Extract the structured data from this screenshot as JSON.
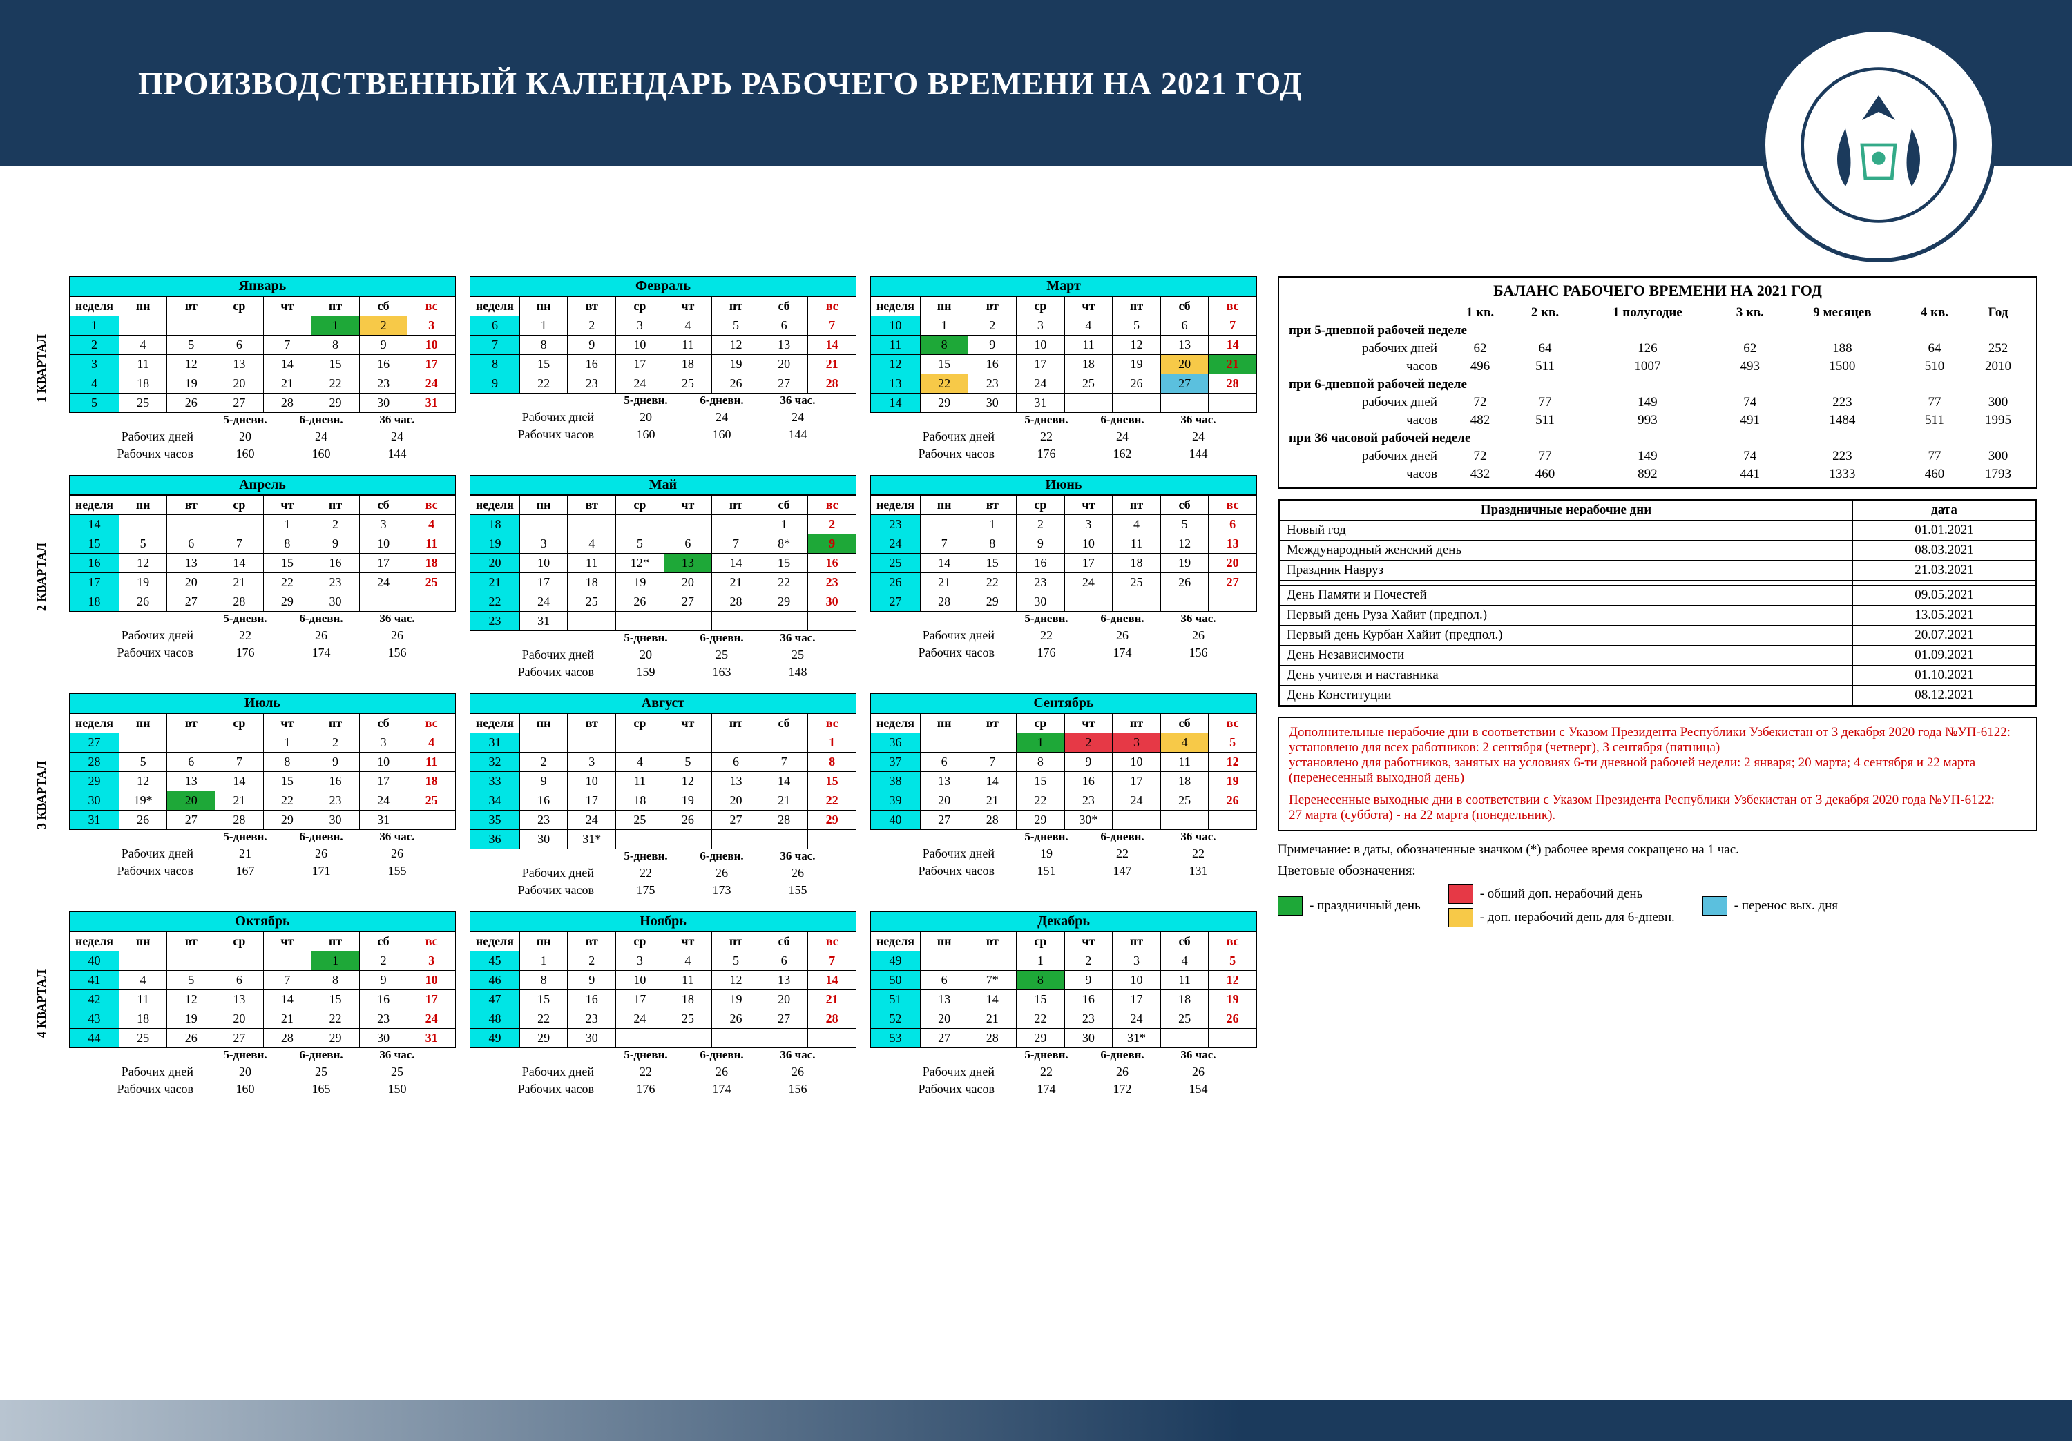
{
  "colors": {
    "brand_dark": "#1b3a5c",
    "cyan_header": "#00e5e5",
    "holiday_green": "#1ea838",
    "holiday_red": "#e63946",
    "holiday_yellow": "#f7c948",
    "holiday_cyan": "#5bc0de",
    "sunday_text": "#c00000"
  },
  "title": "ПРОИЗВОДСТВЕННЫЙ КАЛЕНДАРЬ РАБОЧЕГО ВРЕМЕНИ  НА 2021 ГОД",
  "day_headers": [
    "неделя",
    "пн",
    "вт",
    "ср",
    "чт",
    "пт",
    "сб",
    "вс"
  ],
  "quarter_labels": [
    "1 КВАРТАЛ",
    "2 КВАРТАЛ",
    "3 КВАРТАЛ",
    "4 КВАРТАЛ"
  ],
  "summary_labels": {
    "col5": "5-дневн.",
    "col6": "6-дневн.",
    "col36": "36 час.",
    "days": "Рабочих дней",
    "hours": "Рабочих часов"
  },
  "months": [
    {
      "name": "Январь",
      "weeks": [
        1,
        2,
        3,
        4,
        5
      ],
      "start": 5,
      "days": 31,
      "specials": {
        "1": "green",
        "2": "yellow",
        "3": "sun",
        "10": "sun",
        "14": "sun",
        "17": "sun",
        "23": "sun",
        "24": "sun",
        "31": "sun"
      },
      "sundays": [
        3,
        10,
        17,
        24,
        31
      ],
      "summary": {
        "d5": 20,
        "d6": 24,
        "d36": 24,
        "h5": 160,
        "h6": 160,
        "h36": 144
      }
    },
    {
      "name": "Февраль",
      "weeks": [
        6,
        7,
        8,
        9
      ],
      "start": 1,
      "days": 28,
      "sundays": [
        7,
        14,
        21,
        28
      ],
      "summary": {
        "d5": 20,
        "d6": 24,
        "d36": 24,
        "h5": 160,
        "h6": 160,
        "h36": 144
      }
    },
    {
      "name": "Март",
      "weeks": [
        10,
        11,
        12,
        13,
        14
      ],
      "start": 1,
      "days": 31,
      "specials": {
        "8": "green",
        "20": "yellow",
        "21": "green",
        "22": "yellow",
        "27": "cyan"
      },
      "sundays": [
        7,
        14,
        21,
        28
      ],
      "summary": {
        "d5": 22,
        "d6": 24,
        "d36": 24,
        "h5": 176,
        "h6": 162,
        "h36": 144
      }
    },
    {
      "name": "Апрель",
      "weeks": [
        14,
        15,
        16,
        17,
        18
      ],
      "start": 4,
      "days": 30,
      "sundays": [
        4,
        11,
        18,
        25
      ],
      "summary": {
        "d5": 22,
        "d6": 26,
        "d36": 26,
        "h5": 176,
        "h6": 174,
        "h36": 156
      }
    },
    {
      "name": "Май",
      "weeks": [
        18,
        19,
        20,
        21,
        22,
        23
      ],
      "start": 6,
      "days": 31,
      "specials": {
        "9": "green",
        "13": "green"
      },
      "sundays": [
        2,
        9,
        16,
        23,
        30
      ],
      "stars": [
        "8*",
        "12*"
      ],
      "summary": {
        "d5": 20,
        "d6": 25,
        "d36": 25,
        "h5": 159,
        "h6": 163,
        "h36": 148
      }
    },
    {
      "name": "Июнь",
      "weeks": [
        23,
        24,
        25,
        26,
        27
      ],
      "start": 2,
      "days": 30,
      "sundays": [
        6,
        13,
        20,
        27
      ],
      "summary": {
        "d5": 22,
        "d6": 26,
        "d36": 26,
        "h5": 176,
        "h6": 174,
        "h36": 156
      }
    },
    {
      "name": "Июль",
      "weeks": [
        27,
        28,
        29,
        30,
        31
      ],
      "start": 4,
      "days": 31,
      "specials": {
        "20": "green"
      },
      "sundays": [
        4,
        11,
        18,
        25
      ],
      "stars": [
        "19*"
      ],
      "summary": {
        "d5": 21,
        "d6": 26,
        "d36": 26,
        "h5": 167,
        "h6": 171,
        "h36": 155
      }
    },
    {
      "name": "Август",
      "weeks": [
        31,
        32,
        33,
        34,
        35,
        36
      ],
      "start": 7,
      "days": 31,
      "sundays": [
        1,
        8,
        15,
        22,
        29
      ],
      "stars": [
        "31*"
      ],
      "summary": {
        "d5": 22,
        "d6": 26,
        "d36": 26,
        "h5": 175,
        "h6": 173,
        "h36": 155
      }
    },
    {
      "name": "Сентябрь",
      "weeks": [
        36,
        37,
        38,
        39,
        40
      ],
      "start": 3,
      "days": 30,
      "specials": {
        "1": "green",
        "2": "red",
        "3": "red",
        "4": "yellow"
      },
      "sundays": [
        5,
        12,
        19,
        26
      ],
      "stars": [
        "30*"
      ],
      "summary": {
        "d5": 19,
        "d6": 22,
        "d36": 22,
        "h5": 151,
        "h6": 147,
        "h36": 131
      }
    },
    {
      "name": "Октябрь",
      "weeks": [
        40,
        41,
        42,
        43,
        44
      ],
      "start": 5,
      "days": 31,
      "specials": {
        "1": "green"
      },
      "sundays": [
        3,
        10,
        17,
        24,
        31
      ],
      "summary": {
        "d5": 20,
        "d6": 25,
        "d36": 25,
        "h5": 160,
        "h6": 165,
        "h36": 150
      }
    },
    {
      "name": "Ноябрь",
      "weeks": [
        45,
        46,
        47,
        48,
        49
      ],
      "start": 1,
      "days": 30,
      "sundays": [
        7,
        14,
        21,
        28
      ],
      "summary": {
        "d5": 22,
        "d6": 26,
        "d36": 26,
        "h5": 176,
        "h6": 174,
        "h36": 156
      }
    },
    {
      "name": "Декабрь",
      "weeks": [
        49,
        50,
        51,
        52,
        53
      ],
      "start": 3,
      "days": 31,
      "specials": {
        "8": "green"
      },
      "sundays": [
        5,
        12,
        19,
        26
      ],
      "stars": [
        "7*",
        "31*"
      ],
      "summary": {
        "d5": 22,
        "d6": 26,
        "d36": 26,
        "h5": 174,
        "h6": 172,
        "h36": 154
      }
    }
  ],
  "balance": {
    "title": "БАЛАНС РАБОЧЕГО ВРЕМЕНИ НА 2021 ГОД",
    "cols": [
      "1 кв.",
      "2 кв.",
      "1 полугодие",
      "3 кв.",
      "9 месяцев",
      "4 кв.",
      "Год"
    ],
    "sections": [
      {
        "label": "при 5-дневной рабочей неделе",
        "rows": [
          {
            "label": "рабочих дней",
            "v": [
              62,
              64,
              126,
              62,
              188,
              64,
              252
            ]
          },
          {
            "label": "часов",
            "v": [
              496,
              511,
              1007,
              493,
              1500,
              510,
              2010
            ]
          }
        ]
      },
      {
        "label": "при 6-дневной рабочей неделе",
        "rows": [
          {
            "label": "рабочих дней",
            "v": [
              72,
              77,
              149,
              74,
              223,
              77,
              300
            ]
          },
          {
            "label": "часов",
            "v": [
              482,
              511,
              993,
              491,
              1484,
              511,
              1995
            ]
          }
        ]
      },
      {
        "label": "при 36 часовой рабочей неделе",
        "rows": [
          {
            "label": "рабочих дней",
            "v": [
              72,
              77,
              149,
              74,
              223,
              77,
              300
            ]
          },
          {
            "label": "часов",
            "v": [
              432,
              460,
              892,
              441,
              1333,
              460,
              1793
            ]
          }
        ]
      }
    ]
  },
  "holidays": {
    "header": [
      "Праздничные нерабочие дни",
      "дата"
    ],
    "rows": [
      [
        "Новый год",
        "01.01.2021"
      ],
      [
        "Международный женский день",
        "08.03.2021"
      ],
      [
        "Праздник Навруз",
        "21.03.2021"
      ],
      [
        "",
        ""
      ],
      [
        "День Памяти и Почестей",
        "09.05.2021"
      ],
      [
        "Первый день Руза Хайит       (предпол.)",
        "13.05.2021"
      ],
      [
        "Первый день Курбан Хайит (предпол.)",
        "20.07.2021"
      ],
      [
        "День Независимости",
        "01.09.2021"
      ],
      [
        "День учителя и наставника",
        "01.10.2021"
      ],
      [
        "День Конституции",
        "08.12.2021"
      ]
    ]
  },
  "notes": {
    "p1": "Дополнительные нерабочие дни в соответствии с Указом Президента Республики Узбекистан от  3 декабря 2020 года №УП-6122:",
    "p2": "установлено для всех работников:  2 сентября  (четверг), 3 сентября (пятница)",
    "p3": "установлено для работников, занятых на условиях 6-ти дневной рабочей недели:  2 января; 20 марта; 4 сентября и 22  марта (перенесенный выходной день)",
    "p4": "Перенесенные выходные дни в соответствии с Указом Президента Республики Узбекистан от 3 декабря 2020 года №УП-6122:",
    "p5": "27 марта (суббота) - на 22 марта (понедельник)."
  },
  "remark": "Примечание: в даты, обозначенные значком (*) рабочее время сокращено на 1 час.",
  "legend": {
    "title": "Цветовые обозначения:",
    "items": [
      {
        "cls": "sw-green",
        "label": "-   праздничный день"
      },
      {
        "cls": "sw-red",
        "label": "-   общий доп. нерабочий день"
      },
      {
        "cls": "sw-cyan",
        "label": "-   перенос вых. дня"
      },
      {
        "cls": "sw-yellow",
        "label": "-   доп. нерабочий день для 6-дневн."
      }
    ]
  }
}
